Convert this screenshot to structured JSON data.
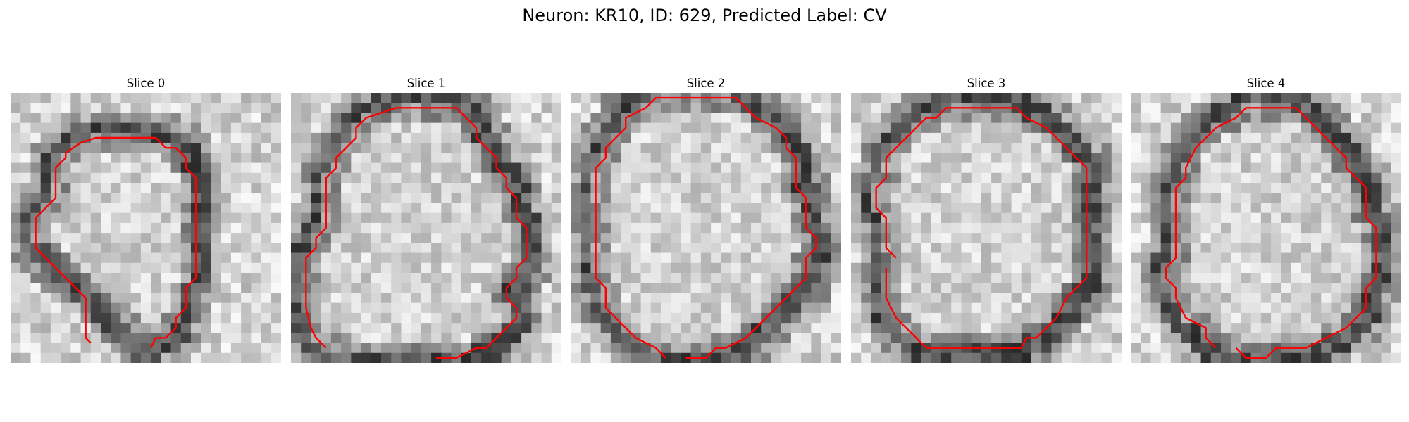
{
  "figure": {
    "title": "Neuron: KR10, ID: 629, Predicted Label: CV",
    "contour_color": "#ff0000",
    "colormap": "gray",
    "panels": [
      {
        "title": "Slice 0",
        "seed": 11,
        "contour": [
          [
            2.5,
            14.5
          ],
          [
            2.5,
            12.5
          ],
          [
            4.5,
            10.5
          ],
          [
            4.5,
            7.5
          ],
          [
            5.5,
            6.5
          ],
          [
            5.5,
            6
          ],
          [
            7,
            5
          ],
          [
            8.5,
            4.5
          ],
          [
            14.5,
            4.5
          ],
          [
            15.5,
            5.5
          ],
          [
            16.5,
            5.5
          ],
          [
            17.5,
            6.5
          ],
          [
            17.5,
            7.5
          ],
          [
            18.5,
            8.5
          ],
          [
            18.5,
            10.5
          ],
          [
            18.5,
            18.5
          ],
          [
            17.5,
            19.5
          ],
          [
            17.5,
            21.5
          ],
          [
            16.5,
            22.5
          ],
          [
            16.5,
            23.5
          ],
          [
            15.5,
            24.5
          ],
          [
            14.5,
            24.5
          ],
          [
            14,
            25.5
          ]
        ],
        "contour_tail": [
          [
            2.5,
            14.5
          ],
          [
            2.5,
            15.5
          ],
          [
            7.5,
            20.5
          ],
          [
            7.5,
            24.5
          ],
          [
            8,
            25
          ]
        ]
      },
      {
        "title": "Slice 1",
        "seed": 23,
        "contour": [
          [
            3.5,
            25.5
          ],
          [
            2.5,
            24.5
          ],
          [
            2,
            23.5
          ],
          [
            1.5,
            21.5
          ],
          [
            1.5,
            16.5
          ],
          [
            2.5,
            15.5
          ],
          [
            2.5,
            14.5
          ],
          [
            3.5,
            13.5
          ],
          [
            3.5,
            8.5
          ],
          [
            4.5,
            7.5
          ],
          [
            4.5,
            6.5
          ],
          [
            6.5,
            4.5
          ],
          [
            6.5,
            3.5
          ],
          [
            7.5,
            2.5
          ],
          [
            10.5,
            1.5
          ],
          [
            16.5,
            1.5
          ],
          [
            17.5,
            2.5
          ],
          [
            18.5,
            3.5
          ],
          [
            18.5,
            4.5
          ],
          [
            20.5,
            6.5
          ],
          [
            20.5,
            7.5
          ],
          [
            21.5,
            8.5
          ],
          [
            21.5,
            9.5
          ],
          [
            22.5,
            10.5
          ],
          [
            22.5,
            12.5
          ],
          [
            23.5,
            13.5
          ],
          [
            23.5,
            16.5
          ],
          [
            22.5,
            17.5
          ],
          [
            22.5,
            18.5
          ],
          [
            21.5,
            19.5
          ],
          [
            21.5,
            20.5
          ],
          [
            22.5,
            21.5
          ],
          [
            22.5,
            22.5
          ],
          [
            21.5,
            23.5
          ],
          [
            20.5,
            24.5
          ],
          [
            19.5,
            25.5
          ],
          [
            18.5,
            25.5
          ],
          [
            16.5,
            26.5
          ],
          [
            14.5,
            26.5
          ]
        ]
      },
      {
        "title": "Slice 2",
        "seed": 37,
        "contour": [
          [
            9.5,
            26.5
          ],
          [
            8.5,
            25.5
          ],
          [
            6.5,
            24.5
          ],
          [
            4.5,
            22.5
          ],
          [
            3.5,
            21.5
          ],
          [
            3.5,
            19.5
          ],
          [
            2.5,
            18.5
          ],
          [
            2.5,
            7.5
          ],
          [
            3.5,
            6.5
          ],
          [
            3.5,
            5.5
          ],
          [
            5.5,
            3.5
          ],
          [
            5.5,
            2.5
          ],
          [
            7.5,
            1.5
          ],
          [
            8.5,
            0.5
          ],
          [
            16.5,
            0.5
          ],
          [
            17.5,
            1.5
          ],
          [
            18.5,
            2.5
          ],
          [
            20.5,
            3.5
          ],
          [
            21.5,
            4.5
          ],
          [
            21.5,
            5.5
          ],
          [
            22.5,
            6.5
          ],
          [
            22.5,
            9.5
          ],
          [
            23.5,
            10.5
          ],
          [
            23.5,
            13.5
          ],
          [
            24.5,
            14.5
          ],
          [
            24.5,
            15.5
          ],
          [
            23.5,
            16.5
          ],
          [
            23.5,
            18.5
          ],
          [
            22.5,
            19.5
          ],
          [
            21.5,
            20.5
          ],
          [
            20.5,
            21.5
          ],
          [
            19.5,
            22.5
          ],
          [
            17.5,
            24.5
          ],
          [
            15.5,
            25.5
          ],
          [
            14.5,
            25.5
          ],
          [
            13.5,
            26.5
          ],
          [
            11.5,
            26.5
          ]
        ]
      },
      {
        "title": "Slice 3",
        "seed": 53,
        "contour": [
          [
            4.5,
            16.5
          ],
          [
            3.5,
            15.5
          ],
          [
            3.5,
            12.5
          ],
          [
            2.5,
            11.5
          ],
          [
            2.5,
            9.5
          ],
          [
            3.5,
            8.5
          ],
          [
            3.5,
            6.5
          ],
          [
            5.5,
            4.5
          ],
          [
            6.5,
            3.5
          ],
          [
            7.5,
            2.5
          ],
          [
            8.5,
            2.5
          ],
          [
            9.5,
            1.5
          ],
          [
            16.5,
            1.5
          ],
          [
            17.5,
            2.5
          ],
          [
            19.5,
            3.5
          ],
          [
            20.5,
            4.5
          ],
          [
            21.5,
            5.5
          ],
          [
            22.5,
            6.5
          ],
          [
            23.5,
            7.5
          ],
          [
            23.5,
            18.5
          ],
          [
            22.5,
            19.5
          ],
          [
            21.5,
            20.5
          ],
          [
            20.5,
            22.5
          ],
          [
            18.5,
            24.5
          ],
          [
            17.5,
            24.5
          ],
          [
            17,
            25.5
          ],
          [
            7.5,
            25.5
          ],
          [
            6.5,
            24.5
          ],
          [
            5.5,
            23.5
          ],
          [
            4.5,
            22.5
          ],
          [
            3.5,
            20.5
          ],
          [
            3.5,
            17.5
          ]
        ]
      },
      {
        "title": "Slice 4",
        "seed": 71,
        "contour": [
          [
            8.5,
            25.5
          ],
          [
            7.5,
            24.5
          ],
          [
            7.5,
            23.5
          ],
          [
            5.5,
            22.5
          ],
          [
            4.5,
            20.5
          ],
          [
            4.5,
            19.5
          ],
          [
            3.5,
            18.5
          ],
          [
            3.5,
            17.5
          ],
          [
            4.5,
            16.5
          ],
          [
            4.5,
            11.5
          ],
          [
            4.5,
            9.5
          ],
          [
            5.5,
            8.5
          ],
          [
            5.5,
            7.5
          ],
          [
            6.5,
            5.5
          ],
          [
            7.5,
            4.5
          ],
          [
            8.5,
            3.5
          ],
          [
            10.5,
            2.5
          ],
          [
            11.5,
            1.5
          ],
          [
            14.5,
            1.5
          ],
          [
            16.5,
            1.5
          ],
          [
            17.5,
            2.5
          ],
          [
            18.5,
            3.5
          ],
          [
            19.5,
            4.5
          ],
          [
            20.5,
            5.5
          ],
          [
            21.5,
            6.5
          ],
          [
            21.5,
            7.5
          ],
          [
            22.5,
            8.5
          ],
          [
            23.5,
            9.5
          ],
          [
            23.5,
            12.5
          ],
          [
            24.5,
            13.5
          ],
          [
            24.5,
            18.5
          ],
          [
            23.5,
            19.5
          ],
          [
            23.5,
            21.5
          ],
          [
            22.5,
            22.5
          ],
          [
            21.5,
            23.5
          ],
          [
            19.5,
            24.5
          ],
          [
            17.5,
            25.5
          ],
          [
            14.5,
            25.5
          ],
          [
            13.5,
            26.5
          ],
          [
            11.5,
            26.5
          ],
          [
            10.5,
            25.5
          ]
        ]
      }
    ]
  }
}
